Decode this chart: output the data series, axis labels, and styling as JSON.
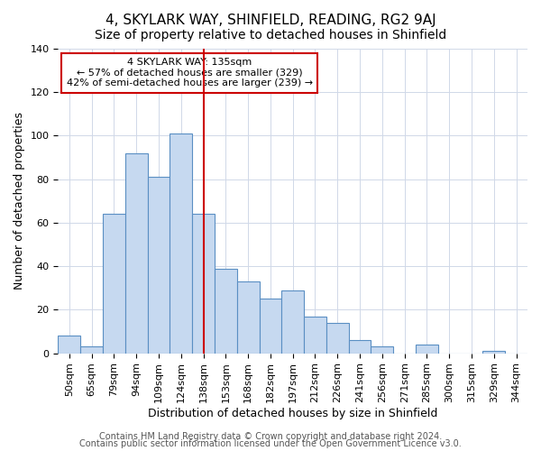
{
  "title": "4, SKYLARK WAY, SHINFIELD, READING, RG2 9AJ",
  "subtitle": "Size of property relative to detached houses in Shinfield",
  "xlabel": "Distribution of detached houses by size in Shinfield",
  "ylabel": "Number of detached properties",
  "bar_labels": [
    "50sqm",
    "65sqm",
    "79sqm",
    "94sqm",
    "109sqm",
    "124sqm",
    "138sqm",
    "153sqm",
    "168sqm",
    "182sqm",
    "197sqm",
    "212sqm",
    "226sqm",
    "241sqm",
    "256sqm",
    "271sqm",
    "285sqm",
    "300sqm",
    "315sqm",
    "329sqm",
    "344sqm"
  ],
  "bar_values": [
    8,
    3,
    64,
    92,
    81,
    101,
    64,
    39,
    33,
    25,
    29,
    17,
    14,
    6,
    3,
    0,
    4,
    0,
    0,
    1,
    0
  ],
  "bar_color": "#c6d9f0",
  "bar_edge_color": "#5a8fc3",
  "vline_x": 6,
  "vline_color": "#cc0000",
  "ylim": [
    0,
    140
  ],
  "annotation_text": "4 SKYLARK WAY: 135sqm\n← 57% of detached houses are smaller (329)\n42% of semi-detached houses are larger (239) →",
  "annotation_box_color": "#ffffff",
  "annotation_box_edge": "#cc0000",
  "footer1": "Contains HM Land Registry data © Crown copyright and database right 2024.",
  "footer2": "Contains public sector information licensed under the Open Government Licence v3.0.",
  "title_fontsize": 11,
  "subtitle_fontsize": 10,
  "xlabel_fontsize": 9,
  "ylabel_fontsize": 9,
  "tick_fontsize": 8,
  "footer_fontsize": 7
}
